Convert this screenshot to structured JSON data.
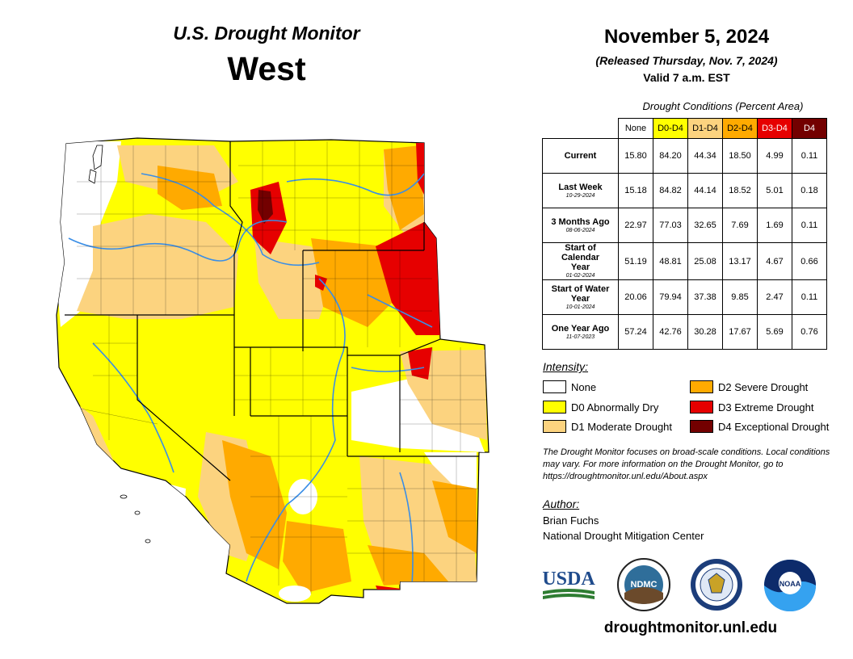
{
  "header": {
    "title": "U.S. Drought Monitor",
    "region": "West",
    "date": "November 5, 2024",
    "released": "(Released Thursday, Nov. 7, 2024)",
    "valid": "Valid 7 a.m. EST"
  },
  "table": {
    "caption": "Drought Conditions (Percent Area)",
    "columns": [
      "None",
      "D0-D4",
      "D1-D4",
      "D2-D4",
      "D3-D4",
      "D4"
    ],
    "column_colors": [
      "#ffffff",
      "#ffff00",
      "#fcd37f",
      "#ffaa00",
      "#e60000",
      "#730000"
    ],
    "rows": [
      {
        "label": "Current",
        "sublabel": "",
        "values": [
          "15.80",
          "84.20",
          "44.34",
          "18.50",
          "4.99",
          "0.11"
        ]
      },
      {
        "label": "Last Week",
        "sublabel": "10-29-2024",
        "values": [
          "15.18",
          "84.82",
          "44.14",
          "18.52",
          "5.01",
          "0.18"
        ]
      },
      {
        "label": "3 Months Ago",
        "sublabel": "08-06-2024",
        "values": [
          "22.97",
          "77.03",
          "32.65",
          "7.69",
          "1.69",
          "0.11"
        ]
      },
      {
        "label": "Start of Calendar Year",
        "sublabel": "01-02-2024",
        "values": [
          "51.19",
          "48.81",
          "25.08",
          "13.17",
          "4.67",
          "0.66"
        ]
      },
      {
        "label": "Start of Water Year",
        "sublabel": "10-01-2024",
        "values": [
          "20.06",
          "79.94",
          "37.38",
          "9.85",
          "2.47",
          "0.11"
        ]
      },
      {
        "label": "One Year Ago",
        "sublabel": "11-07-2023",
        "values": [
          "57.24",
          "42.76",
          "30.28",
          "17.67",
          "5.69",
          "0.76"
        ]
      }
    ]
  },
  "legend": {
    "title": "Intensity:",
    "items": [
      {
        "label": "None",
        "color": "#ffffff"
      },
      {
        "label": "D0 Abnormally Dry",
        "color": "#ffff00"
      },
      {
        "label": "D1 Moderate Drought",
        "color": "#fcd37f"
      },
      {
        "label": "D2 Severe Drought",
        "color": "#ffaa00"
      },
      {
        "label": "D3 Extreme Drought",
        "color": "#e60000"
      },
      {
        "label": "D4 Exceptional Drought",
        "color": "#730000"
      }
    ]
  },
  "note": "The Drought Monitor focuses on broad-scale conditions. Local conditions may vary. For more information on the Drought Monitor, go to https://droughtmonitor.unl.edu/About.aspx",
  "author": {
    "label": "Author:",
    "name": "Brian Fuchs",
    "org": "National Drought Mitigation Center"
  },
  "logos": {
    "usda": "USDA",
    "ndmc": "NDMC",
    "noaa": "NOAA"
  },
  "website": "droughtmonitor.unl.edu",
  "colors": {
    "none": "#ffffff",
    "d0": "#ffff00",
    "d1": "#fcd37f",
    "d2": "#ffaa00",
    "d3": "#e60000",
    "d4": "#730000",
    "river": "#3a8ee6",
    "border": "#000000"
  }
}
